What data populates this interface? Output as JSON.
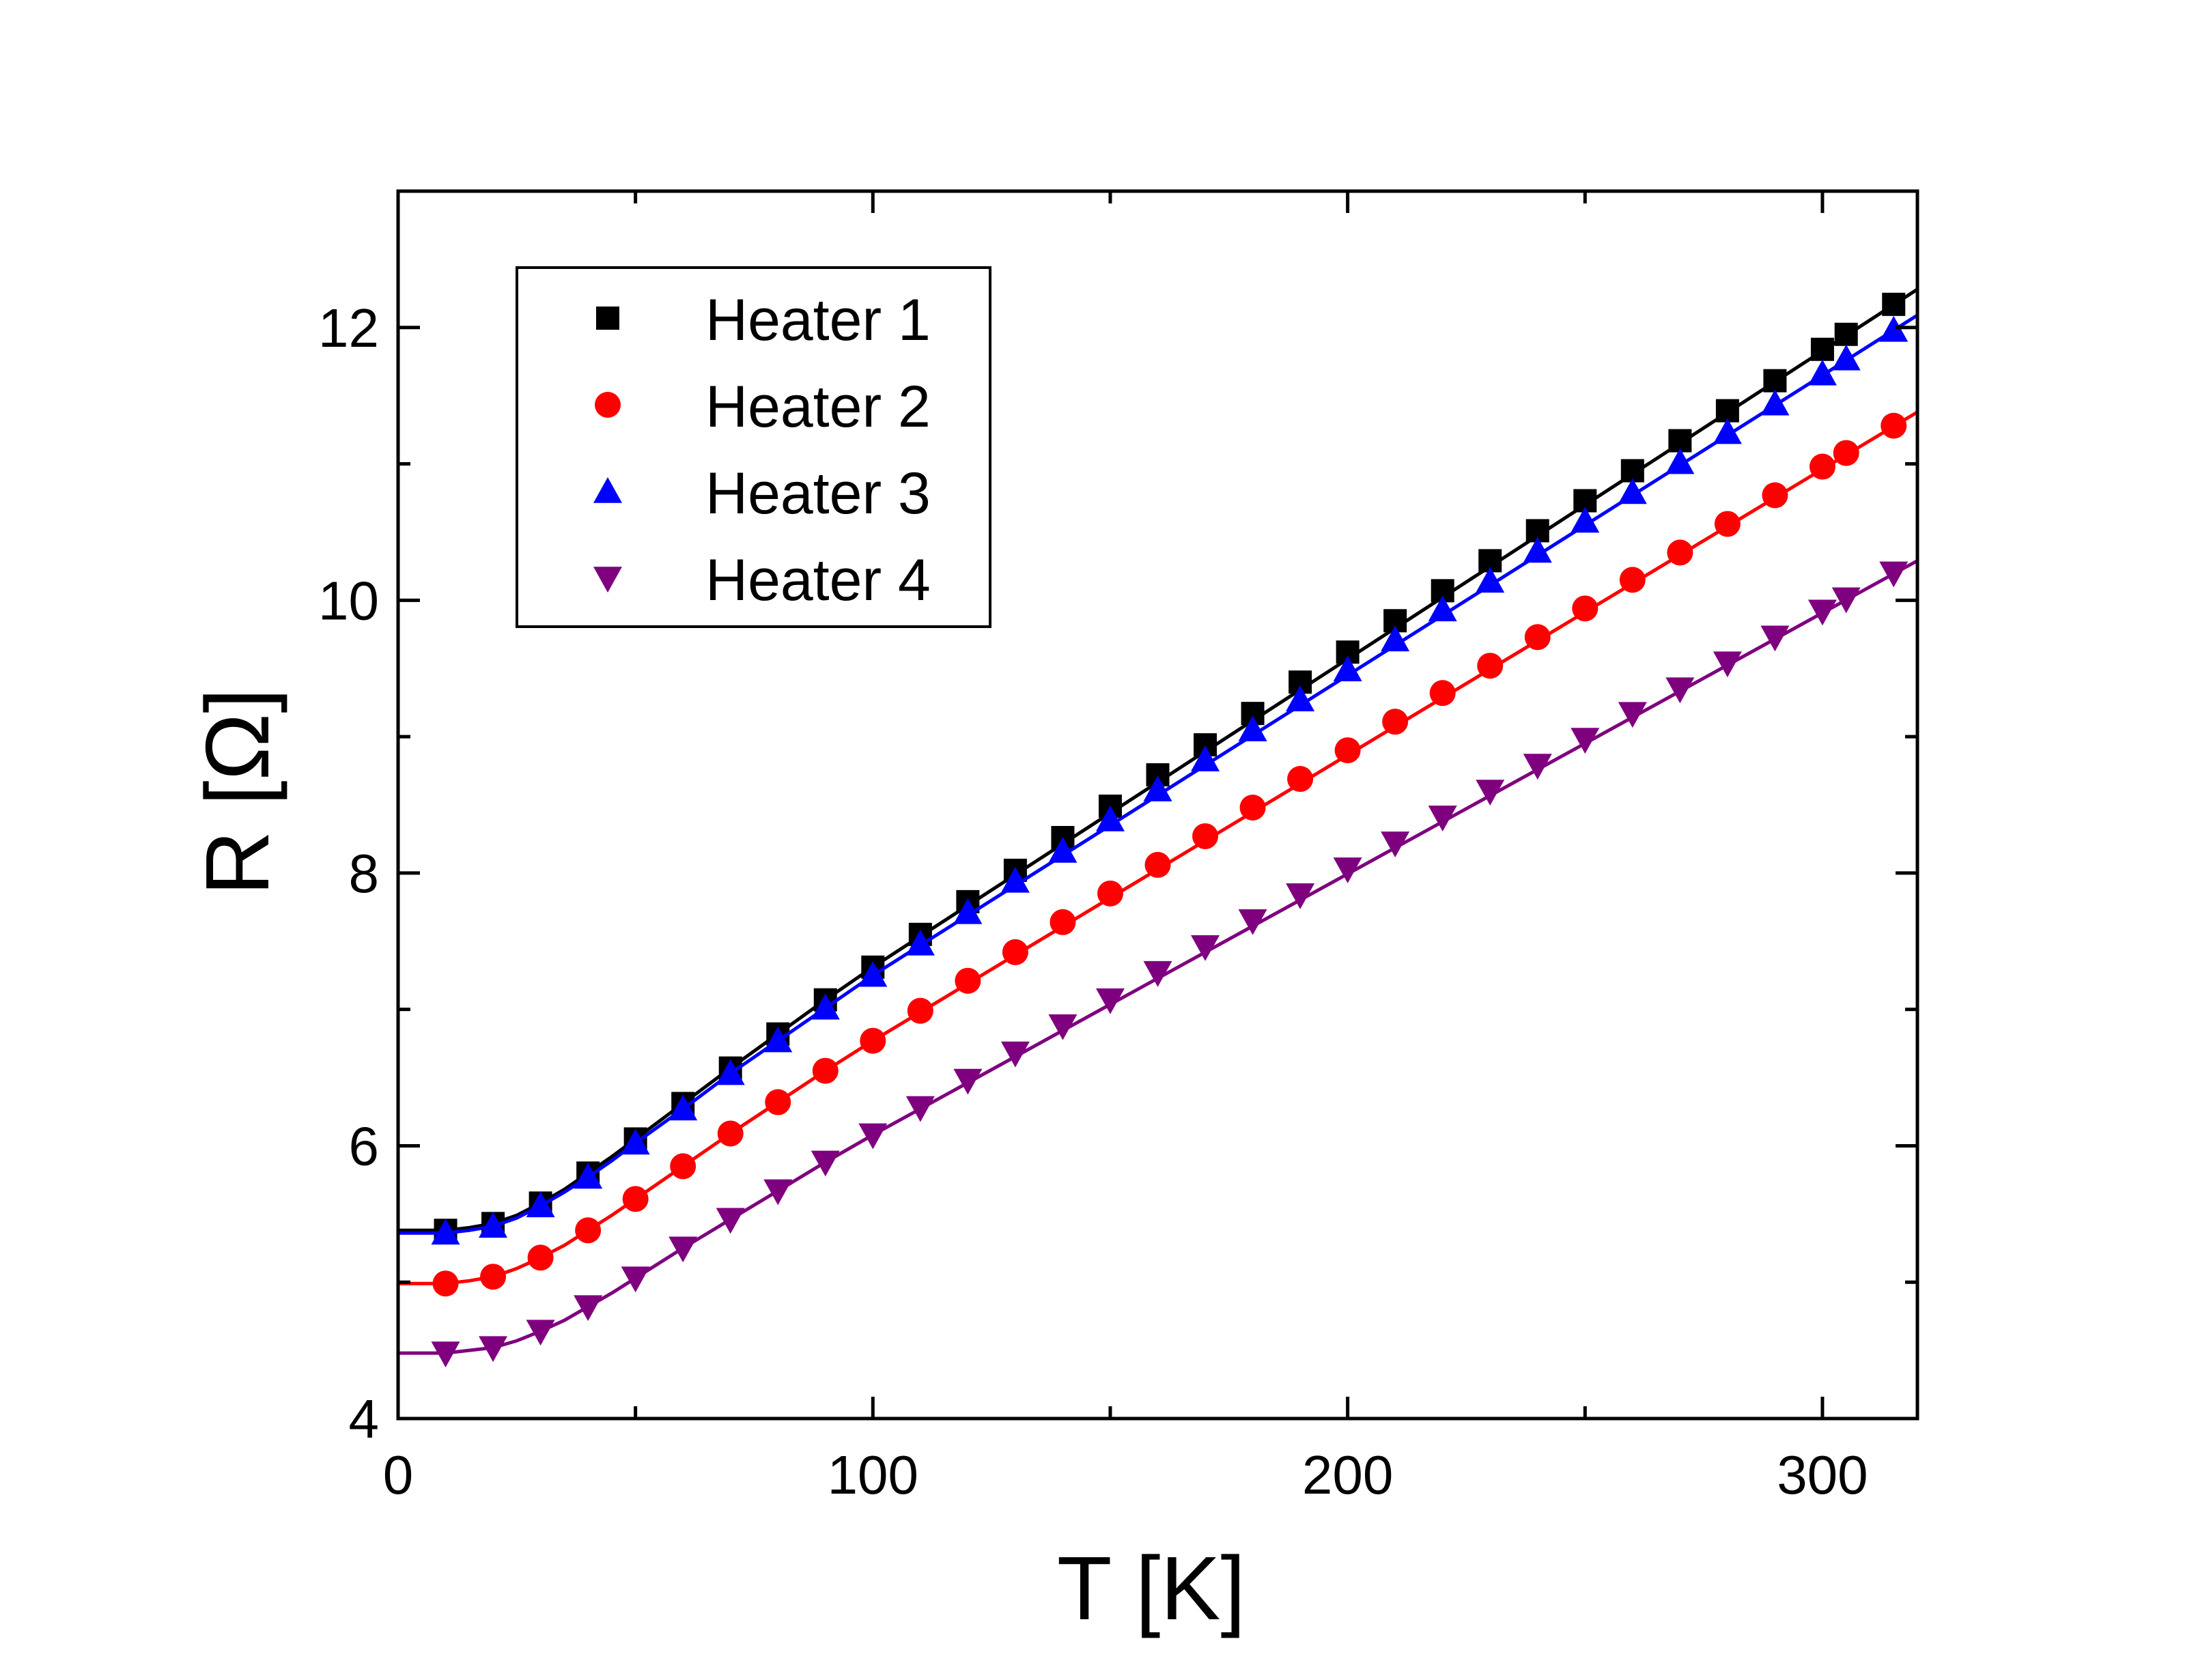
{
  "chart_data": {
    "type": "line",
    "title": "",
    "xlabel": "T [K]",
    "ylabel": "R [Ω]",
    "xlim": [
      0,
      320
    ],
    "ylim": [
      4,
      13
    ],
    "xticks": [
      0,
      100,
      200,
      300
    ],
    "xtick_labels": [
      "0",
      "100",
      "200",
      "300"
    ],
    "xminor": [
      50,
      150,
      250
    ],
    "yticks": [
      4,
      6,
      8,
      10,
      12
    ],
    "ytick_labels": [
      "4",
      "6",
      "8",
      "10",
      "12"
    ],
    "yminor": [
      5,
      7,
      9,
      11
    ],
    "grid": false,
    "legend_position": "top-left",
    "x": [
      10,
      20,
      30,
      40,
      50,
      60,
      70,
      80,
      90,
      100,
      110,
      120,
      130,
      140,
      150,
      160,
      170,
      180,
      190,
      200,
      210,
      220,
      230,
      240,
      250,
      260,
      270,
      280,
      290,
      300,
      305,
      315
    ],
    "series": [
      {
        "name": "Heater 1",
        "color": "#000000",
        "marker": "square",
        "values": [
          5.38,
          5.43,
          5.58,
          5.8,
          6.05,
          6.31,
          6.57,
          6.82,
          7.07,
          7.31,
          7.55,
          7.79,
          8.02,
          8.26,
          8.49,
          8.72,
          8.94,
          9.17,
          9.4,
          9.62,
          9.85,
          10.07,
          10.29,
          10.51,
          10.73,
          10.95,
          11.17,
          11.39,
          11.61,
          11.84,
          11.95,
          12.17
        ],
        "fit_x": [
          0,
          5,
          10,
          15,
          20,
          25,
          30,
          35,
          40,
          45,
          50,
          60,
          70,
          80,
          90,
          100,
          320
        ],
        "fit_y": [
          5.38,
          5.38,
          5.38,
          5.4,
          5.43,
          5.49,
          5.58,
          5.68,
          5.8,
          5.92,
          6.05,
          6.31,
          6.57,
          6.82,
          7.07,
          7.31,
          12.28
        ]
      },
      {
        "name": "Heater 2",
        "color": "#ff0000",
        "marker": "circle",
        "values": [
          4.99,
          5.04,
          5.18,
          5.38,
          5.61,
          5.85,
          6.09,
          6.32,
          6.55,
          6.77,
          6.99,
          7.21,
          7.42,
          7.64,
          7.85,
          8.06,
          8.27,
          8.48,
          8.69,
          8.9,
          9.11,
          9.32,
          9.52,
          9.73,
          9.94,
          10.15,
          10.35,
          10.56,
          10.77,
          10.98,
          11.08,
          11.28
        ],
        "fit_x": [
          0,
          5,
          10,
          15,
          20,
          25,
          30,
          35,
          40,
          45,
          50,
          60,
          70,
          80,
          90,
          100,
          320
        ],
        "fit_y": [
          4.99,
          4.99,
          4.99,
          5.01,
          5.04,
          5.1,
          5.18,
          5.27,
          5.38,
          5.49,
          5.61,
          5.85,
          6.09,
          6.32,
          6.55,
          6.77,
          11.38
        ]
      },
      {
        "name": "Heater 3",
        "color": "#0000ff",
        "marker": "triangle-up",
        "values": [
          5.36,
          5.41,
          5.56,
          5.77,
          6.02,
          6.27,
          6.53,
          6.77,
          7.01,
          7.25,
          7.48,
          7.71,
          7.94,
          8.16,
          8.39,
          8.61,
          8.83,
          9.05,
          9.27,
          9.49,
          9.71,
          9.93,
          10.14,
          10.36,
          10.58,
          10.79,
          11.01,
          11.23,
          11.44,
          11.66,
          11.77,
          11.98
        ],
        "fit_x": [
          0,
          5,
          10,
          15,
          20,
          25,
          30,
          35,
          40,
          45,
          50,
          60,
          70,
          80,
          90,
          100,
          320
        ],
        "fit_y": [
          5.36,
          5.36,
          5.36,
          5.38,
          5.41,
          5.47,
          5.56,
          5.66,
          5.77,
          5.89,
          6.02,
          6.27,
          6.53,
          6.77,
          7.01,
          7.25,
          12.09
        ]
      },
      {
        "name": "Heater 4",
        "color": "#7f007f",
        "marker": "triangle-down",
        "values": [
          4.48,
          4.52,
          4.64,
          4.82,
          5.03,
          5.25,
          5.46,
          5.67,
          5.88,
          6.08,
          6.28,
          6.48,
          6.68,
          6.88,
          7.07,
          7.27,
          7.46,
          7.65,
          7.84,
          8.03,
          8.22,
          8.41,
          8.6,
          8.79,
          8.98,
          9.17,
          9.35,
          9.54,
          9.73,
          9.92,
          10.01,
          10.2
        ],
        "fit_x": [
          0,
          5,
          10,
          15,
          20,
          25,
          30,
          35,
          40,
          45,
          50,
          60,
          70,
          80,
          90,
          100,
          320
        ],
        "fit_y": [
          4.48,
          4.48,
          4.48,
          4.5,
          4.52,
          4.57,
          4.64,
          4.72,
          4.82,
          4.92,
          5.03,
          5.25,
          5.46,
          5.67,
          5.88,
          6.08,
          10.29
        ]
      }
    ]
  }
}
